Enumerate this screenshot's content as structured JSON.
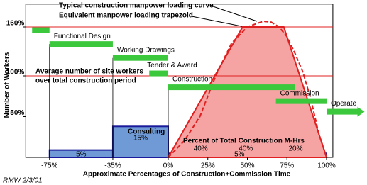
{
  "chart_data": {
    "type": "manpower-loading",
    "title": "Typical construction manpower loading curve",
    "subtitle": "Equivalent manpower loading trapezoid",
    "y_label": "Number of Workers",
    "x_label": "Approximate Percentages of Construction+Commission Time",
    "note": "RMW 2/3/01",
    "average_label": [
      "Average number of site workers",
      "over total construction period"
    ],
    "xlim": [
      -90,
      104
    ],
    "ylim": [
      0,
      188
    ],
    "xticks": [
      {
        "value": -75,
        "label": "-75%"
      },
      {
        "value": -35,
        "label": "-35%"
      },
      {
        "value": 0,
        "label": "0%"
      },
      {
        "value": 25,
        "label": "25%"
      },
      {
        "value": 50,
        "label": "50%"
      },
      {
        "value": 75,
        "label": "75%"
      },
      {
        "value": 100,
        "label": "100%"
      }
    ],
    "yticks": [
      {
        "value": 50,
        "label": "50%"
      },
      {
        "value": 100,
        "label": "100%"
      },
      {
        "value": 160,
        "label": "160%"
      }
    ],
    "reference_lines": [
      100,
      160
    ],
    "curve": {
      "color": "#e02020",
      "x": [
        0,
        10,
        20,
        30,
        40,
        50,
        60,
        65,
        70,
        75,
        80,
        85,
        90,
        95,
        100
      ],
      "values": [
        0,
        20,
        50,
        100,
        140,
        160,
        167,
        166,
        160,
        148,
        128,
        105,
        72,
        30,
        0
      ]
    },
    "trapezoid": {
      "color": "#e02020",
      "fill": "#f6a3a3",
      "x": [
        0,
        47,
        73,
        100
      ],
      "values": [
        0,
        160,
        160,
        0
      ],
      "label": "Percent of Total Construction M-Hrs",
      "share_labels": [
        "40%",
        "40%",
        "20%"
      ]
    },
    "consulting": {
      "name": "Consulting",
      "color": "#1a1a9a",
      "fill": "#6f9ad6",
      "segments": [
        {
          "start": -75,
          "end": -35,
          "value": 9,
          "share_label": "5%"
        },
        {
          "start": -35,
          "end": 0,
          "value": 38,
          "share_label": "15%"
        },
        {
          "start": 0,
          "end": 100,
          "value": 5,
          "share_label": "5%"
        }
      ]
    },
    "phases": {
      "color": "#3cc83c",
      "names": [
        null,
        "Functional Design",
        "Working Drawings",
        "Tender & Award",
        "Construction",
        "Commission",
        "Operate"
      ],
      "start": [
        -86,
        -75,
        -35,
        -12,
        0,
        68,
        100
      ],
      "end": [
        -75,
        -35,
        0,
        0,
        80,
        100,
        124
      ],
      "values": [
        156,
        139,
        122,
        103,
        86,
        69,
        56
      ]
    }
  }
}
